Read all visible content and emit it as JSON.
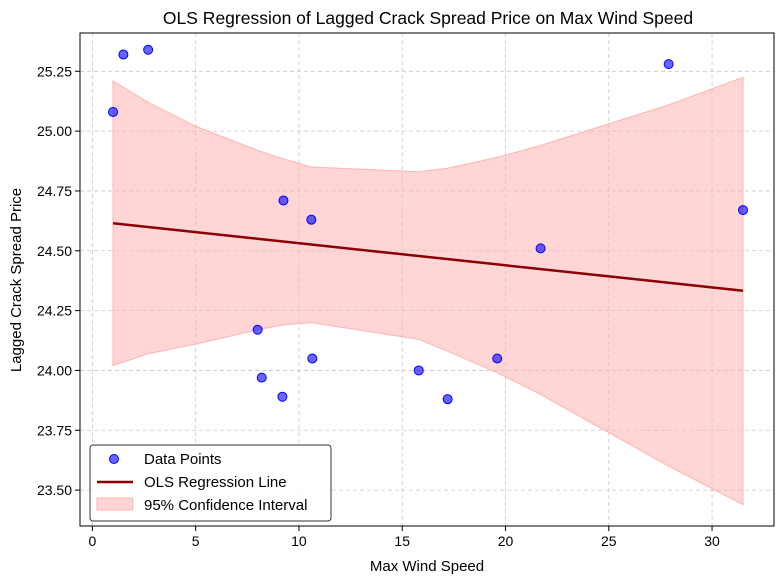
{
  "chart_data": {
    "type": "scatter",
    "title": "OLS Regression of Lagged Crack Spread Price on Max Wind Speed",
    "xlabel": "Max Wind Speed",
    "ylabel": "Lagged Crack Spread Price",
    "xlim": [
      -0.6,
      33.0
    ],
    "ylim": [
      23.35,
      25.41
    ],
    "xticks": [
      0,
      5,
      10,
      15,
      20,
      25,
      30
    ],
    "yticks": [
      23.5,
      23.75,
      24.0,
      24.25,
      24.5,
      24.75,
      25.0,
      25.25
    ],
    "ytick_labels": [
      "23.50",
      "23.75",
      "24.00",
      "24.25",
      "24.50",
      "24.75",
      "25.00",
      "25.25"
    ],
    "grid": true,
    "legend_position": "bottom-left",
    "colors": {
      "points": "#0000ff",
      "line": "#8b0000",
      "band": "#ffb3b3"
    },
    "points": [
      {
        "x": 1.0,
        "y": 25.08
      },
      {
        "x": 1.5,
        "y": 25.32
      },
      {
        "x": 2.7,
        "y": 25.34
      },
      {
        "x": 8.0,
        "y": 24.17
      },
      {
        "x": 8.2,
        "y": 23.97
      },
      {
        "x": 9.2,
        "y": 23.89
      },
      {
        "x": 9.25,
        "y": 24.71
      },
      {
        "x": 10.6,
        "y": 24.63
      },
      {
        "x": 10.65,
        "y": 24.05
      },
      {
        "x": 15.8,
        "y": 24.0
      },
      {
        "x": 17.2,
        "y": 23.88
      },
      {
        "x": 19.6,
        "y": 24.05
      },
      {
        "x": 21.7,
        "y": 24.51
      },
      {
        "x": 27.9,
        "y": 25.28
      },
      {
        "x": 31.5,
        "y": 24.67
      }
    ],
    "regression_line": {
      "x": [
        1.0,
        31.5
      ],
      "y": [
        24.615,
        24.333
      ]
    },
    "confidence_band": {
      "x": [
        1.0,
        2.7,
        5.0,
        8.0,
        9.2,
        10.6,
        15.8,
        17.2,
        19.6,
        21.7,
        27.9,
        31.5
      ],
      "upper": [
        25.21,
        25.12,
        25.02,
        24.92,
        24.885,
        24.85,
        24.83,
        24.845,
        24.89,
        24.94,
        25.11,
        25.225
      ],
      "lower": [
        24.02,
        24.07,
        24.11,
        24.17,
        24.19,
        24.2,
        24.13,
        24.08,
        23.99,
        23.9,
        23.6,
        23.44
      ]
    },
    "legend": [
      {
        "key": "points",
        "label": "Data Points"
      },
      {
        "key": "line",
        "label": "OLS Regression Line"
      },
      {
        "key": "band",
        "label": "95% Confidence Interval"
      }
    ]
  }
}
